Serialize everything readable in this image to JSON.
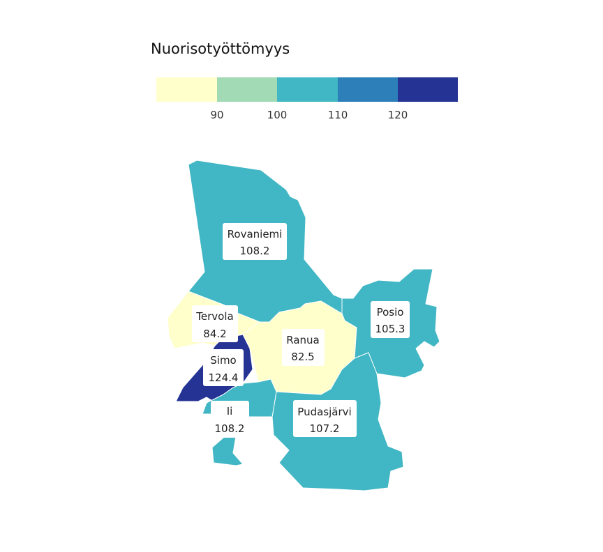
{
  "legend": {
    "title": "Nuorisotyöttömyys",
    "bins": [
      {
        "color": "#ffffcc"
      },
      {
        "color": "#a1dab4"
      },
      {
        "color": "#41b6c4"
      },
      {
        "color": "#2c7fb8"
      },
      {
        "color": "#253494"
      }
    ],
    "ticks": [
      "90",
      "100",
      "110",
      "120"
    ]
  },
  "regions": [
    {
      "key": "rovaniemi",
      "name": "Rovaniemi",
      "value": "108.2",
      "color": "#41b6c4"
    },
    {
      "key": "tervola",
      "name": "Tervola",
      "value": "84.2",
      "color": "#ffffcc"
    },
    {
      "key": "simo",
      "name": "Simo",
      "value": "124.4",
      "color": "#253494"
    },
    {
      "key": "ranua",
      "name": "Ranua",
      "value": "82.5",
      "color": "#ffffcc"
    },
    {
      "key": "posio",
      "name": "Posio",
      "value": "105.3",
      "color": "#41b6c4"
    },
    {
      "key": "ii",
      "name": "Ii",
      "value": "108.2",
      "color": "#41b6c4"
    },
    {
      "key": "pudasjarvi",
      "name": "Pudasjärvi",
      "value": "107.2",
      "color": "#41b6c4"
    }
  ]
}
